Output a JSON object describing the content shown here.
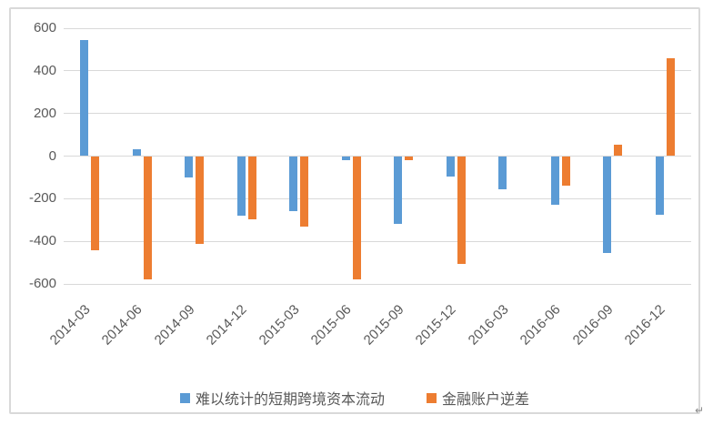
{
  "page": {
    "background_color": "#ffffff",
    "frame_border_color": "#d9d9d9",
    "grid_color": "#d9d9d9",
    "text_color": "#595959"
  },
  "chart_data": {
    "type": "bar",
    "title": "",
    "xlabel": "",
    "ylabel": "",
    "categories": [
      "2014-03",
      "2014-06",
      "2014-09",
      "2014-12",
      "2015-03",
      "2015-06",
      "2015-09",
      "2015-12",
      "2016-03",
      "2016-06",
      "2016-09",
      "2016-12"
    ],
    "series": [
      {
        "name": "难以统计的短期跨境资本流动",
        "color": "#5b9bd5",
        "values": [
          545,
          30,
          -100,
          -280,
          -260,
          -20,
          -320,
          -95,
          -155,
          -230,
          -455,
          -275
        ]
      },
      {
        "name": "金融账户逆差",
        "color": "#ed7d31",
        "values": [
          -440,
          -580,
          -410,
          -295,
          -330,
          -580,
          -20,
          -505,
          0,
          -140,
          55,
          460
        ]
      }
    ],
    "ylim": [
      -600,
      600
    ],
    "yticks": [
      600,
      400,
      200,
      0,
      -200,
      -400,
      -600
    ],
    "grid": true,
    "legend_position": "bottom",
    "xtick_rotation_deg": 45
  },
  "decorations": {
    "return_mark": "↵"
  }
}
